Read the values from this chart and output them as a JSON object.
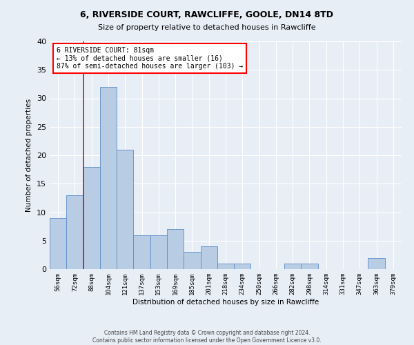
{
  "title_line1": "6, RIVERSIDE COURT, RAWCLIFFE, GOOLE, DN14 8TD",
  "title_line2": "Size of property relative to detached houses in Rawcliffe",
  "xlabel": "Distribution of detached houses by size in Rawcliffe",
  "ylabel": "Number of detached properties",
  "footnote": "Contains HM Land Registry data © Crown copyright and database right 2024.\nContains public sector information licensed under the Open Government Licence v3.0.",
  "bar_color": "#b8cce4",
  "bar_edge_color": "#5b8dc8",
  "background_color": "#e8eef6",
  "grid_color": "#ffffff",
  "categories": [
    "56sqm",
    "72sqm",
    "88sqm",
    "104sqm",
    "121sqm",
    "137sqm",
    "153sqm",
    "169sqm",
    "185sqm",
    "201sqm",
    "218sqm",
    "234sqm",
    "250sqm",
    "266sqm",
    "282sqm",
    "298sqm",
    "314sqm",
    "331sqm",
    "347sqm",
    "363sqm",
    "379sqm"
  ],
  "values": [
    9,
    13,
    18,
    32,
    21,
    6,
    6,
    7,
    3,
    4,
    1,
    1,
    0,
    0,
    1,
    1,
    0,
    0,
    0,
    2,
    0
  ],
  "red_line_x": 1.5,
  "annotation_title": "6 RIVERSIDE COURT: 81sqm",
  "annotation_line1": "← 13% of detached houses are smaller (16)",
  "annotation_line2": "87% of semi-detached houses are larger (103) →",
  "ylim": [
    0,
    40
  ],
  "yticks": [
    0,
    5,
    10,
    15,
    20,
    25,
    30,
    35,
    40
  ]
}
